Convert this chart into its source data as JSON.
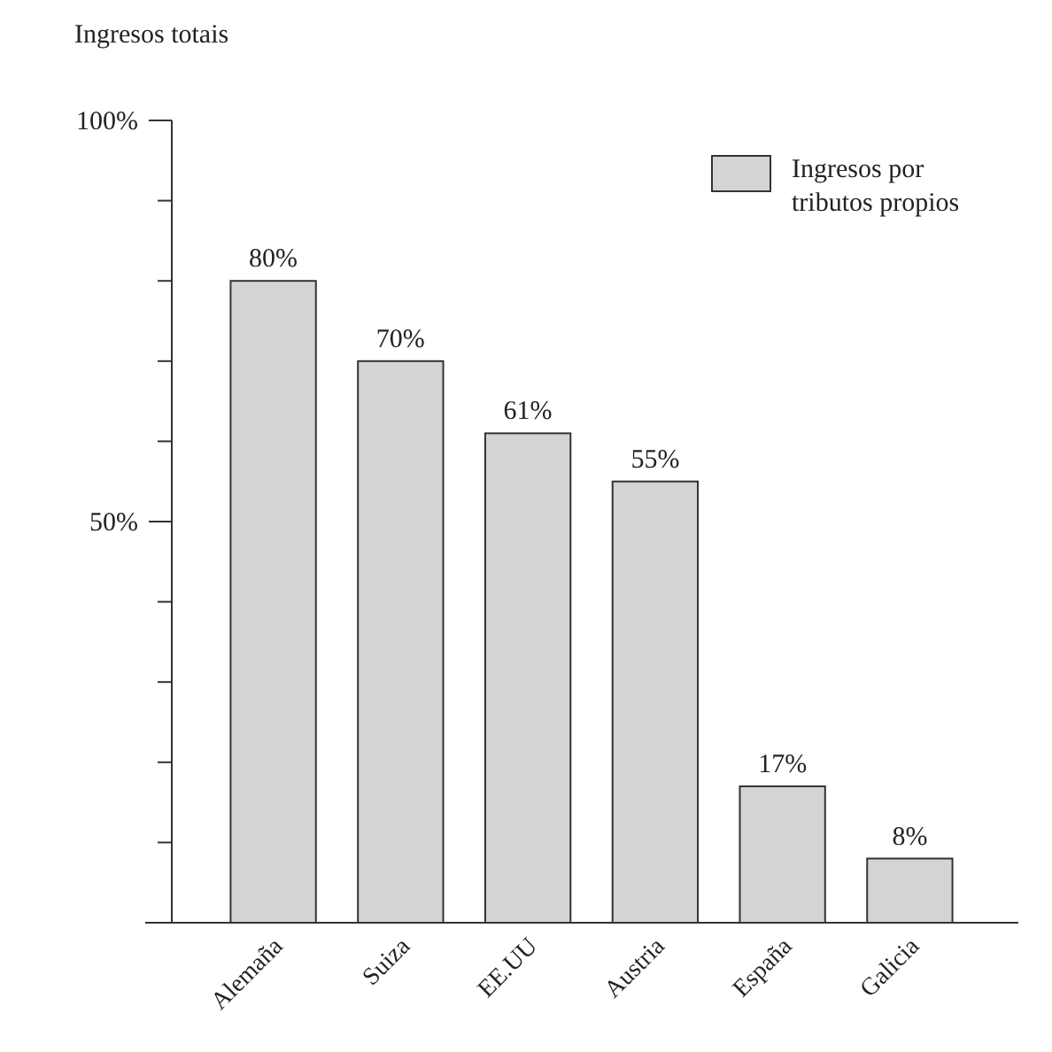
{
  "chart_data": {
    "type": "bar",
    "ylabel": "Ingresos totais",
    "categories": [
      "Alemaña",
      "Suiza",
      "EE.UU",
      "Austria",
      "España",
      "Galicia"
    ],
    "series": [
      {
        "name": "Ingresos por tributos propios",
        "color": "#d4d4d4",
        "values": [
          80,
          70,
          61,
          55,
          17,
          8
        ],
        "value_labels": [
          "80%",
          "70%",
          "61%",
          "55%",
          "17%",
          "8%"
        ]
      }
    ],
    "ylim": [
      0,
      100
    ],
    "yticks": [
      {
        "value": 0,
        "label": null
      },
      {
        "value": 10,
        "label": null
      },
      {
        "value": 20,
        "label": null
      },
      {
        "value": 30,
        "label": null
      },
      {
        "value": 40,
        "label": null
      },
      {
        "value": 50,
        "label": "50%"
      },
      {
        "value": 60,
        "label": null
      },
      {
        "value": 70,
        "label": null
      },
      {
        "value": 80,
        "label": null
      },
      {
        "value": 90,
        "label": null
      },
      {
        "value": 100,
        "label": "100%"
      }
    ],
    "legend": "top right",
    "grid": false
  }
}
